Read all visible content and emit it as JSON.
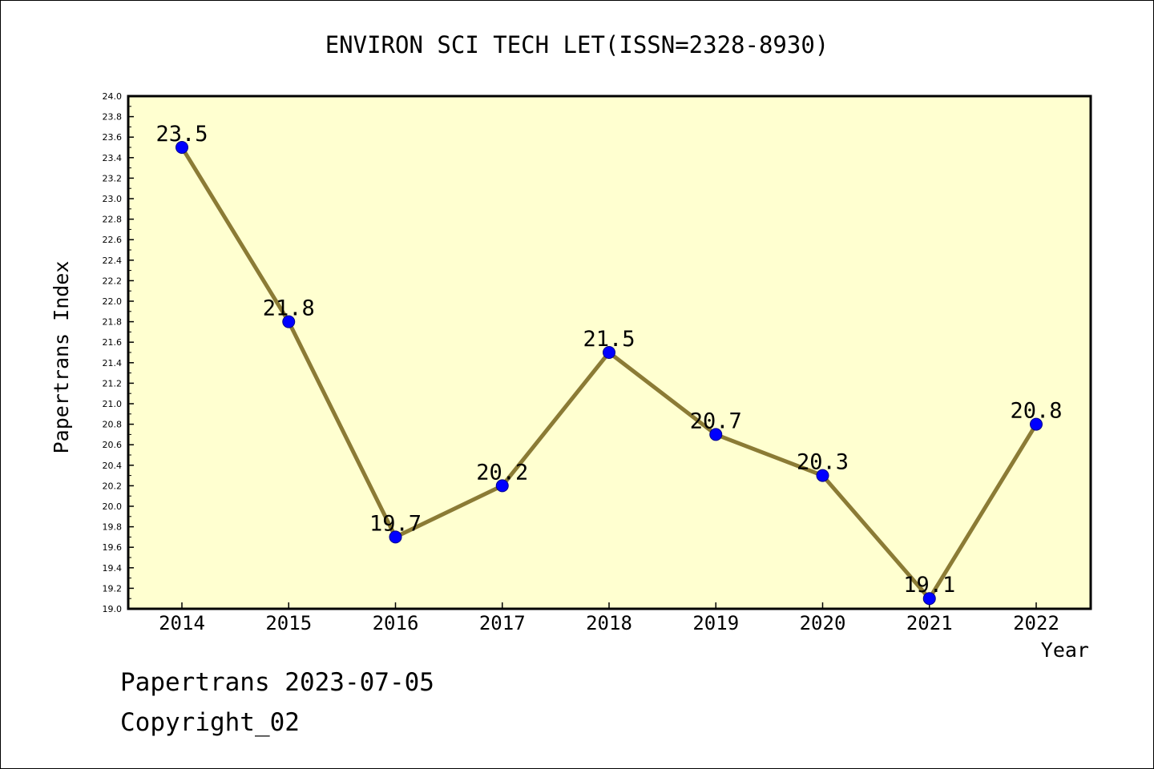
{
  "chart_data": {
    "type": "line",
    "title": "ENVIRON SCI TECH LET(ISSN=2328-8930)",
    "xlabel": "Year",
    "ylabel": "Papertrans Index",
    "categories": [
      "2014",
      "2015",
      "2016",
      "2017",
      "2018",
      "2019",
      "2020",
      "2021",
      "2022"
    ],
    "series": [
      {
        "values": [
          23.5,
          21.8,
          19.7,
          20.2,
          21.5,
          20.7,
          20.3,
          19.1,
          20.8
        ]
      }
    ],
    "data_labels": [
      "23.5",
      "21.8",
      "19.7",
      "20.2",
      "21.5",
      "20.7",
      "20.3",
      "19.1",
      "20.8"
    ],
    "ylim": [
      19.0,
      24.0
    ],
    "yticks": [
      "19.0",
      "19.2",
      "19.4",
      "19.6",
      "19.8",
      "20.0",
      "20.2",
      "20.4",
      "20.6",
      "20.8",
      "21.0",
      "21.2",
      "21.4",
      "21.6",
      "21.8",
      "22.0",
      "22.2",
      "22.4",
      "22.6",
      "22.8",
      "23.0",
      "23.2",
      "23.4",
      "23.6",
      "23.8",
      "24.0"
    ],
    "grid": false,
    "colors": {
      "plot_background": "#ffffd0",
      "line": "#8b7b35",
      "marker": "#0000ff"
    }
  },
  "footer": {
    "line1": "Papertrans 2023-07-05",
    "line2": "Copyright_02"
  }
}
